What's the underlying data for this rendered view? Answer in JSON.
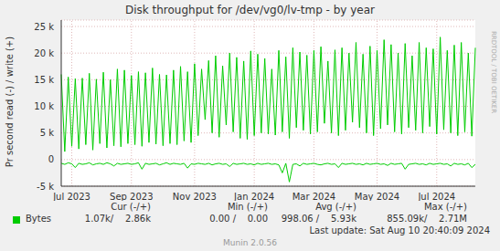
{
  "chart_data": {
    "type": "line",
    "title": "Disk throughput for /dev/vg0/lv-tmp - by year",
    "y_label": "Pr second read (-) / write (+)",
    "watermark": "RRDTOOL / TOBI OETIKER",
    "grid": true,
    "ylim": [
      -5000,
      26200
    ],
    "yticks": [
      {
        "value": -5000,
        "label": "-5 k"
      },
      0,
      {
        "value": 5000,
        "label": "5 k"
      },
      {
        "value": 10000,
        "label": "10 k"
      },
      {
        "value": 15000,
        "label": "15 k"
      },
      {
        "value": 20000,
        "label": "20 k"
      },
      {
        "value": 25000,
        "label": "25 k"
      }
    ],
    "categories": [
      null,
      null,
      null,
      "Jul 2023",
      null,
      null,
      null,
      null,
      null,
      null,
      null,
      null,
      null,
      null,
      null,
      null,
      null,
      null,
      null,
      null,
      "Sep 2023",
      null,
      null,
      null,
      null,
      null,
      null,
      null,
      null,
      null,
      null,
      null,
      null,
      null,
      null,
      null,
      null,
      null,
      "Nov 2023",
      null,
      null,
      null,
      null,
      null,
      null,
      null,
      null,
      null,
      null,
      null,
      null,
      null,
      null,
      null,
      null,
      "Jan 2024",
      null,
      null,
      null,
      null,
      null,
      null,
      null,
      null,
      null,
      null,
      null,
      null,
      null,
      null,
      null,
      null,
      "Mar 2024",
      null,
      null,
      null,
      null,
      null,
      null,
      null,
      null,
      null,
      null,
      null,
      null,
      null,
      null,
      null,
      null,
      null,
      "May 2024",
      null,
      null,
      null,
      null,
      null,
      null,
      null,
      null,
      null,
      null,
      null,
      null,
      null,
      null,
      null,
      null,
      "Jul 2024",
      null,
      null,
      null,
      null,
      null,
      null,
      null,
      null,
      null,
      null,
      null
    ],
    "series": [
      {
        "name": "Bytes",
        "color": "#00cc00",
        "values": [
          16000,
          1500,
          15500,
          2500,
          15200,
          2000,
          15300,
          2800,
          16200,
          1800,
          15100,
          3000,
          16400,
          2200,
          15000,
          2600,
          17000,
          2400,
          16800,
          3000,
          15800,
          2800,
          16500,
          2500,
          16300,
          3200,
          17200,
          2900,
          16000,
          2600,
          15900,
          3000,
          16800,
          2800,
          17500,
          3500,
          16500,
          3200,
          18000,
          4500,
          17000,
          7500,
          18600,
          5000,
          19500,
          4200,
          17600,
          6500,
          20000,
          5200,
          19200,
          4000,
          18500,
          3800,
          20400,
          4500,
          19800,
          5000,
          19000,
          4800,
          17000,
          4600,
          20500,
          5200,
          19300,
          4000,
          21000,
          6000,
          20200,
          5500,
          19600,
          4800,
          20500,
          5200,
          21200,
          6800,
          18500,
          5000,
          20600,
          4500,
          21000,
          5500,
          20000,
          7000,
          22000,
          6000,
          19800,
          5000,
          21300,
          4500,
          20500,
          5800,
          22500,
          6500,
          21600,
          5200,
          20000,
          4800,
          21800,
          6000,
          19500,
          5500,
          22000,
          5000,
          21000,
          6200,
          20800,
          4800,
          23000,
          5600,
          20500,
          5000,
          21500,
          4500,
          22000,
          5200,
          20000,
          4400,
          21000
        ],
        "negative_values": [
          -700,
          -900,
          -600,
          -800,
          -1500,
          -700,
          -900,
          -800,
          -600,
          -1000,
          -800,
          -700,
          -900,
          -600,
          -800,
          -1200,
          -700,
          -900,
          -800,
          -700,
          -900,
          -800,
          -600,
          -1800,
          -700,
          -900,
          -800,
          -700,
          -1000,
          -800,
          -600,
          -900,
          -700,
          -800,
          -900,
          -700,
          -1600,
          -800,
          -900,
          -700,
          -800,
          -900,
          -700,
          -1000,
          -800,
          -700,
          -900,
          -800,
          -1300,
          -700,
          -900,
          -800,
          -700,
          -900,
          -800,
          -1000,
          -700,
          -900,
          -800,
          -700,
          -900,
          -800,
          -1000,
          -2500,
          -700,
          -4200,
          -900,
          -800,
          -1200,
          -700,
          -900,
          -800,
          -700,
          -900,
          -1000,
          -800,
          -700,
          -900,
          -800,
          -1500,
          -700,
          -900,
          -800,
          -700,
          -900,
          -800,
          -1000,
          -700,
          -900,
          -800,
          -700,
          -900,
          -800,
          -1100,
          -700,
          -900,
          -800,
          -700,
          -1800,
          -900,
          -800,
          -700,
          -900,
          -800,
          -1000,
          -700,
          -900,
          -800,
          -700,
          -900,
          -800,
          -1200,
          -700,
          -900,
          -800,
          -1000,
          -700,
          -1500,
          -900
        ]
      }
    ],
    "legend_table": {
      "headers": [
        "Cur (-/+)",
        "Min (-/+)",
        "Avg (-/+)",
        "Max (-/+)"
      ],
      "cells": [
        "1.07k/    2.86k",
        "0.00 /    0.00",
        "998.06 /    5.93k",
        "855.09k/    2.71M"
      ]
    },
    "last_update": "Last update: Sat Aug 10 20:40:09 2024",
    "footer": "Munin 2.0.56"
  }
}
